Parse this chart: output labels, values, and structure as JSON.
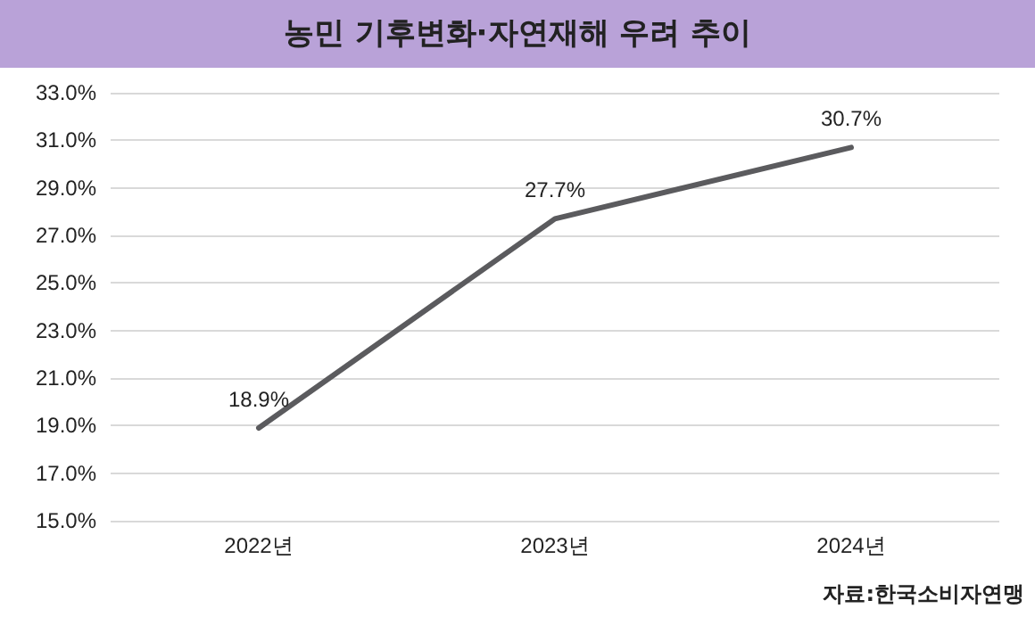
{
  "chart_data": {
    "type": "line",
    "title": "농민 기후변화·자연재해 우려 추이",
    "categories": [
      "2022년",
      "2023년",
      "2024년"
    ],
    "series": [
      {
        "color": "#5b5b5e",
        "values": [
          18.9,
          27.7,
          30.7
        ],
        "value_labels": [
          "18.9%",
          "27.7%",
          "30.7%"
        ]
      }
    ],
    "ylim": [
      15,
      33
    ],
    "yticks": [
      {
        "value": 15,
        "label": "15.0%"
      },
      {
        "value": 17,
        "label": "17.0%"
      },
      {
        "value": 19,
        "label": "19.0%"
      },
      {
        "value": 21,
        "label": "21.0%"
      },
      {
        "value": 23,
        "label": "23.0%"
      },
      {
        "value": 25,
        "label": "25.0%"
      },
      {
        "value": 27,
        "label": "27.0%"
      },
      {
        "value": 29,
        "label": "29.0%"
      },
      {
        "value": 31,
        "label": "31.0%"
      },
      {
        "value": 33,
        "label": "33.0%"
      }
    ],
    "grid": "y",
    "marker": "none",
    "line_style": "solid",
    "annotations": [
      "자료:한국소비자연맹"
    ]
  }
}
